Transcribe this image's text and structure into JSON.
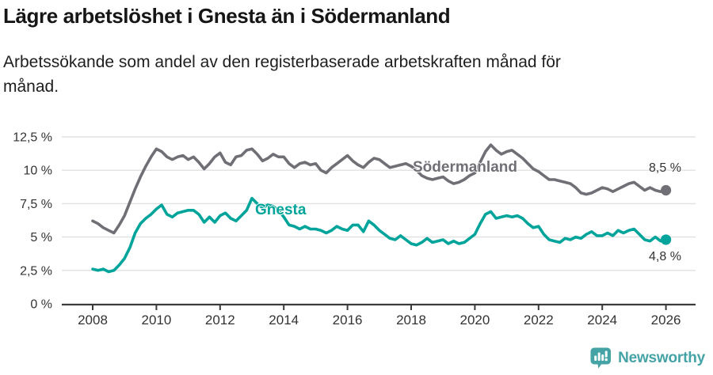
{
  "header": {
    "title": "Lägre arbetslöshet i Gnesta än i Södermanland",
    "subtitle": "Arbetssökande som andel av den registerbaserade arbetskraften månad för månad.",
    "subtitle_line1": "Arbetssökande som andel av den registerbaserade arbetskraften månad för",
    "subtitle_line2": "månad."
  },
  "footer": {
    "brand": "Newsworthy",
    "logo_icon": "bar-chart-speech-bubble-icon"
  },
  "colors": {
    "brand_teal": "#45a3a6",
    "axis": "#3b3b3b",
    "grid": "#e0e0e0",
    "tick_text": "#333333"
  },
  "chart_data": {
    "type": "line",
    "title": "Lägre arbetslöshet i Gnesta än i Södermanland",
    "subtitle": "Arbetssökande som andel av den registerbaserade arbetskraften månad för månad.",
    "unit": "%",
    "x_start": 2008.0,
    "x_step": 0.1666667,
    "xlim": [
      2007.7,
      2026.9
    ],
    "ylim": [
      0,
      12.5
    ],
    "grid": "horizontal",
    "legend_position": "inline-labels",
    "x_ticks": [
      "2008",
      "2010",
      "2012",
      "2014",
      "2016",
      "2018",
      "2020",
      "2022",
      "2024",
      "2026"
    ],
    "y_ticks": [
      {
        "label": "12,5 %",
        "value": 12.5
      },
      {
        "label": "10 %",
        "value": 10
      },
      {
        "label": "7,5 %",
        "value": 7.5
      },
      {
        "label": "5 %",
        "value": 5
      },
      {
        "label": "2,5 %",
        "value": 2.5
      },
      {
        "label": "0 %",
        "value": 0
      }
    ],
    "series": [
      {
        "name": "Södermanland",
        "color": "#6f6f75",
        "end_label": "8,5 %",
        "end_value": 8.5,
        "values": [
          6.2,
          6.0,
          5.7,
          5.5,
          5.3,
          5.9,
          6.6,
          7.6,
          8.6,
          9.5,
          10.3,
          11.0,
          11.6,
          11.4,
          11.0,
          10.8,
          11.0,
          11.1,
          10.8,
          11.0,
          10.6,
          10.1,
          10.5,
          11.0,
          11.3,
          10.6,
          10.4,
          11.0,
          11.1,
          11.5,
          11.6,
          11.2,
          10.7,
          10.9,
          11.2,
          11.0,
          11.0,
          10.5,
          10.2,
          10.5,
          10.6,
          10.4,
          10.5,
          10.0,
          9.8,
          10.2,
          10.5,
          10.8,
          11.1,
          10.7,
          10.4,
          10.2,
          10.6,
          10.9,
          10.8,
          10.5,
          10.2,
          10.3,
          10.4,
          10.5,
          10.3,
          10.0,
          9.6,
          9.4,
          9.3,
          9.4,
          9.5,
          9.2,
          9.0,
          9.1,
          9.3,
          9.6,
          9.8,
          10.6,
          11.4,
          11.9,
          11.5,
          11.2,
          11.4,
          11.5,
          11.2,
          10.9,
          10.5,
          10.1,
          9.9,
          9.6,
          9.3,
          9.3,
          9.2,
          9.1,
          9.0,
          8.7,
          8.3,
          8.2,
          8.3,
          8.5,
          8.7,
          8.6,
          8.4,
          8.6,
          8.8,
          9.0,
          9.1,
          8.8,
          8.5,
          8.7,
          8.5,
          8.4,
          8.5
        ]
      },
      {
        "name": "Gnesta",
        "color": "#00a49a",
        "end_label": "4,8 %",
        "end_value": 4.8,
        "values": [
          2.6,
          2.5,
          2.6,
          2.4,
          2.5,
          2.9,
          3.4,
          4.2,
          5.3,
          6.0,
          6.4,
          6.7,
          7.1,
          7.4,
          6.7,
          6.5,
          6.8,
          6.9,
          7.0,
          7.0,
          6.7,
          6.1,
          6.5,
          6.1,
          6.6,
          6.8,
          6.4,
          6.2,
          6.6,
          7.0,
          7.9,
          7.5,
          7.2,
          7.4,
          7.3,
          7.0,
          6.5,
          5.9,
          5.8,
          5.6,
          5.8,
          5.6,
          5.6,
          5.5,
          5.3,
          5.5,
          5.8,
          5.6,
          5.5,
          5.9,
          5.9,
          5.4,
          6.2,
          5.9,
          5.5,
          5.2,
          4.9,
          4.8,
          5.1,
          4.8,
          4.5,
          4.4,
          4.6,
          4.9,
          4.6,
          4.7,
          4.8,
          4.5,
          4.7,
          4.5,
          4.6,
          4.9,
          5.2,
          6.0,
          6.7,
          6.9,
          6.4,
          6.5,
          6.6,
          6.5,
          6.6,
          6.4,
          6.0,
          5.7,
          5.8,
          5.2,
          4.8,
          4.7,
          4.6,
          4.9,
          4.8,
          5.0,
          4.9,
          5.2,
          5.4,
          5.1,
          5.1,
          5.3,
          5.1,
          5.5,
          5.3,
          5.5,
          5.6,
          5.2,
          4.8,
          4.7,
          5.0,
          4.7,
          4.8
        ]
      }
    ]
  }
}
